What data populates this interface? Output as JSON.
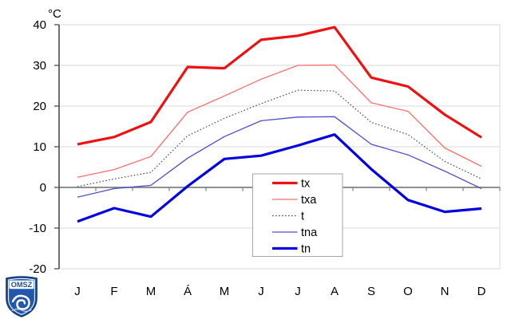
{
  "logo": {
    "text": "OMSZ"
  },
  "chart_data": {
    "type": "line",
    "title": "",
    "ylabel": "°C",
    "xlabel": "",
    "ylim": [
      -20,
      40
    ],
    "y_ticks": [
      40,
      30,
      20,
      10,
      0,
      -10,
      -20
    ],
    "grid": true,
    "gridline_color": "#d9d9d9",
    "zero_line_color": "#808080",
    "axis_color": "#4d4d4d",
    "legend_position": "inside-bottom-center",
    "categories": [
      "J",
      "F",
      "M",
      "Á",
      "M",
      "J",
      "J",
      "A",
      "S",
      "O",
      "N",
      "D"
    ],
    "series": [
      {
        "name": "tx",
        "color": "#ee1111",
        "width": 3.2,
        "style": "solid",
        "values": [
          10.6,
          12.4,
          16.1,
          29.6,
          29.3,
          36.3,
          37.3,
          39.4,
          27.0,
          24.8,
          17.9,
          12.3
        ]
      },
      {
        "name": "txa",
        "color": "#ff6b6b",
        "width": 1.3,
        "style": "solid",
        "values": [
          2.5,
          4.4,
          7.6,
          18.5,
          22.5,
          26.6,
          30.0,
          30.1,
          20.8,
          18.7,
          9.7,
          5.2
        ]
      },
      {
        "name": "t",
        "color": "#4d4d4d",
        "width": 1.2,
        "style": "dotted",
        "values": [
          0.2,
          2.1,
          3.7,
          12.7,
          17.0,
          20.6,
          23.9,
          23.7,
          16.0,
          13.0,
          6.4,
          2.1
        ]
      },
      {
        "name": "tna",
        "color": "#4d4dcf",
        "width": 1.3,
        "style": "solid",
        "values": [
          -2.4,
          -0.3,
          0.5,
          7.2,
          12.5,
          16.4,
          17.3,
          17.4,
          10.6,
          8.0,
          4.0,
          -0.3
        ]
      },
      {
        "name": "tn",
        "color": "#0000e0",
        "width": 3.2,
        "style": "solid",
        "values": [
          -8.4,
          -5.1,
          -7.2,
          0.3,
          7.0,
          7.8,
          10.3,
          13.0,
          4.5,
          -3.1,
          -6.0,
          -5.2
        ]
      }
    ]
  }
}
